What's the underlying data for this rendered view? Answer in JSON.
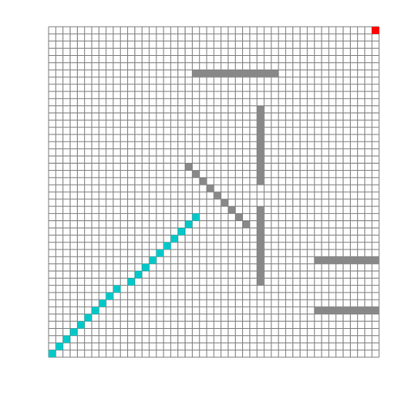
{
  "grid": {
    "cols": 46,
    "rows": 46,
    "line_color": "#808080",
    "background_color": "#ffffff"
  },
  "colors": {
    "wall": "#888888",
    "path": "#00c8c8",
    "goal": "#ff0000"
  },
  "goal": {
    "col": 45,
    "row": 0
  },
  "path": {
    "from": {
      "col": 0,
      "row": 45
    },
    "to": {
      "col": 20,
      "row": 26
    }
  },
  "walls": [
    {
      "name": "wall-horizontal-top",
      "from": {
        "col": 20,
        "row": 6
      },
      "to": {
        "col": 31,
        "row": 6
      }
    },
    {
      "name": "wall-vertical-upper",
      "from": {
        "col": 29,
        "row": 11
      },
      "to": {
        "col": 29,
        "row": 21
      }
    },
    {
      "name": "wall-diagonal",
      "from": {
        "col": 19,
        "row": 19
      },
      "to": {
        "col": 27,
        "row": 27
      }
    },
    {
      "name": "wall-vertical-lower",
      "from": {
        "col": 29,
        "row": 25
      },
      "to": {
        "col": 29,
        "row": 35
      }
    },
    {
      "name": "wall-horizontal-right-upper",
      "from": {
        "col": 37,
        "row": 32
      },
      "to": {
        "col": 45,
        "row": 32
      }
    },
    {
      "name": "wall-horizontal-right-lower",
      "from": {
        "col": 37,
        "row": 39
      },
      "to": {
        "col": 45,
        "row": 39
      }
    }
  ]
}
